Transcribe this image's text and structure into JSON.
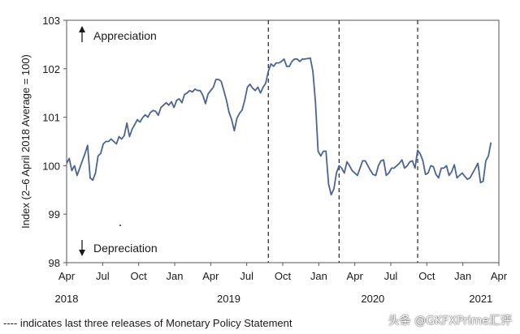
{
  "chart_data": {
    "type": "line",
    "ylabel": "Index (2–6 April 2018 Average = 100)",
    "ylim": [
      98,
      103
    ],
    "yticks": [
      "98",
      "99",
      "100",
      "101",
      "102",
      "103"
    ],
    "xticks": [
      "Apr",
      "Jul",
      "Oct",
      "Jan",
      "Apr",
      "Jul",
      "Oct",
      "Jan",
      "Apr",
      "Jul",
      "Oct",
      "Jan",
      "Apr"
    ],
    "years": [
      "2018",
      "2019",
      "2020",
      "2021"
    ],
    "annotation_up": "Appreciation",
    "annotation_down": "Depreciation",
    "vlines_week": [
      77,
      104,
      134
    ],
    "series": [
      {
        "name": "Index",
        "color": "#4a6494",
        "points": [
          [
            0,
            100.05
          ],
          [
            1,
            100.15
          ],
          [
            2,
            99.9
          ],
          [
            3,
            100.0
          ],
          [
            4,
            99.8
          ],
          [
            5,
            99.95
          ],
          [
            6,
            100.1
          ],
          [
            7,
            100.25
          ],
          [
            8,
            100.42
          ],
          [
            9,
            99.75
          ],
          [
            10,
            99.7
          ],
          [
            11,
            99.85
          ],
          [
            12,
            100.2
          ],
          [
            13,
            100.25
          ],
          [
            14,
            100.45
          ],
          [
            15,
            100.5
          ],
          [
            16,
            100.5
          ],
          [
            17,
            100.55
          ],
          [
            18,
            100.5
          ],
          [
            19,
            100.45
          ],
          [
            20,
            100.6
          ],
          [
            21,
            100.55
          ],
          [
            22,
            100.62
          ],
          [
            23,
            100.88
          ],
          [
            24,
            100.6
          ],
          [
            25,
            100.75
          ],
          [
            26,
            100.85
          ],
          [
            27,
            100.95
          ],
          [
            28,
            100.9
          ],
          [
            29,
            100.99
          ],
          [
            30,
            101.05
          ],
          [
            31,
            101.0
          ],
          [
            32,
            101.1
          ],
          [
            33,
            101.14
          ],
          [
            34,
            101.12
          ],
          [
            35,
            101.04
          ],
          [
            36,
            101.2
          ],
          [
            37,
            101.25
          ],
          [
            38,
            101.3
          ],
          [
            39,
            101.25
          ],
          [
            40,
            101.32
          ],
          [
            41,
            101.2
          ],
          [
            42,
            101.35
          ],
          [
            43,
            101.38
          ],
          [
            44,
            101.3
          ],
          [
            45,
            101.47
          ],
          [
            46,
            101.5
          ],
          [
            47,
            101.55
          ],
          [
            48,
            101.52
          ],
          [
            49,
            101.58
          ],
          [
            50,
            101.55
          ],
          [
            51,
            101.55
          ],
          [
            52,
            101.45
          ],
          [
            53,
            101.28
          ],
          [
            54,
            101.48
          ],
          [
            55,
            101.55
          ],
          [
            56,
            101.62
          ],
          [
            57,
            101.78
          ],
          [
            58,
            101.78
          ],
          [
            59,
            101.74
          ],
          [
            60,
            101.55
          ],
          [
            61,
            101.35
          ],
          [
            62,
            101.1
          ],
          [
            63,
            100.95
          ],
          [
            64,
            100.72
          ],
          [
            65,
            100.98
          ],
          [
            66,
            101.08
          ],
          [
            67,
            101.15
          ],
          [
            68,
            101.35
          ],
          [
            69,
            101.62
          ],
          [
            70,
            101.68
          ],
          [
            71,
            101.6
          ],
          [
            72,
            101.55
          ],
          [
            73,
            101.62
          ],
          [
            74,
            101.5
          ],
          [
            75,
            101.62
          ],
          [
            76,
            101.7
          ],
          [
            77,
            101.95
          ],
          [
            78,
            102.1
          ],
          [
            79,
            102.05
          ],
          [
            80,
            102.12
          ],
          [
            81,
            102.12
          ],
          [
            82,
            102.15
          ],
          [
            83,
            102.2
          ],
          [
            84,
            102.05
          ],
          [
            85,
            102.05
          ],
          [
            86,
            102.15
          ],
          [
            87,
            102.2
          ],
          [
            88,
            102.2
          ],
          [
            89,
            102.15
          ],
          [
            90,
            102.2
          ],
          [
            91,
            102.2
          ],
          [
            92,
            102.21
          ],
          [
            93,
            102.22
          ],
          [
            94,
            101.95
          ],
          [
            95,
            101.3
          ],
          [
            96,
            100.3
          ],
          [
            97,
            100.2
          ],
          [
            98,
            100.3
          ],
          [
            99,
            100.3
          ],
          [
            100,
            99.62
          ],
          [
            101,
            99.4
          ],
          [
            102,
            99.52
          ],
          [
            103,
            99.85
          ],
          [
            104,
            100.0
          ],
          [
            105,
            99.95
          ],
          [
            106,
            99.85
          ],
          [
            107,
            100.08
          ],
          [
            108,
            100.0
          ],
          [
            109,
            99.9
          ],
          [
            110,
            99.85
          ],
          [
            111,
            99.8
          ],
          [
            112,
            99.95
          ],
          [
            113,
            100.1
          ],
          [
            114,
            100.1
          ],
          [
            115,
            100.0
          ],
          [
            116,
            99.9
          ],
          [
            117,
            99.82
          ],
          [
            118,
            99.8
          ],
          [
            119,
            100.0
          ],
          [
            120,
            100.1
          ],
          [
            121,
            100.12
          ],
          [
            122,
            99.8
          ],
          [
            123,
            99.85
          ],
          [
            124,
            99.95
          ],
          [
            125,
            99.95
          ],
          [
            126,
            100.0
          ],
          [
            127,
            100.05
          ],
          [
            128,
            100.12
          ],
          [
            129,
            99.95
          ],
          [
            130,
            100.0
          ],
          [
            131,
            100.08
          ],
          [
            132,
            100.1
          ],
          [
            133,
            99.95
          ],
          [
            134,
            100.32
          ],
          [
            135,
            100.24
          ],
          [
            136,
            100.1
          ],
          [
            137,
            99.82
          ],
          [
            138,
            99.85
          ],
          [
            139,
            100.0
          ],
          [
            140,
            99.98
          ],
          [
            141,
            99.82
          ],
          [
            142,
            99.75
          ],
          [
            143,
            99.95
          ],
          [
            144,
            99.95
          ],
          [
            145,
            100.0
          ],
          [
            146,
            99.8
          ],
          [
            147,
            99.88
          ],
          [
            148,
            100.02
          ],
          [
            149,
            99.75
          ],
          [
            150,
            99.8
          ],
          [
            151,
            99.85
          ],
          [
            152,
            99.78
          ],
          [
            153,
            99.72
          ],
          [
            154,
            99.75
          ],
          [
            155,
            99.85
          ],
          [
            156,
            99.95
          ],
          [
            157,
            100.05
          ],
          [
            158,
            99.65
          ],
          [
            159,
            99.68
          ],
          [
            160,
            100.1
          ],
          [
            161,
            100.2
          ],
          [
            162,
            100.48
          ]
        ]
      }
    ]
  },
  "footnote": "---- indicates last three releases of Monetary Policy Statement",
  "watermark": "头条 @GKFXPrime汇评"
}
